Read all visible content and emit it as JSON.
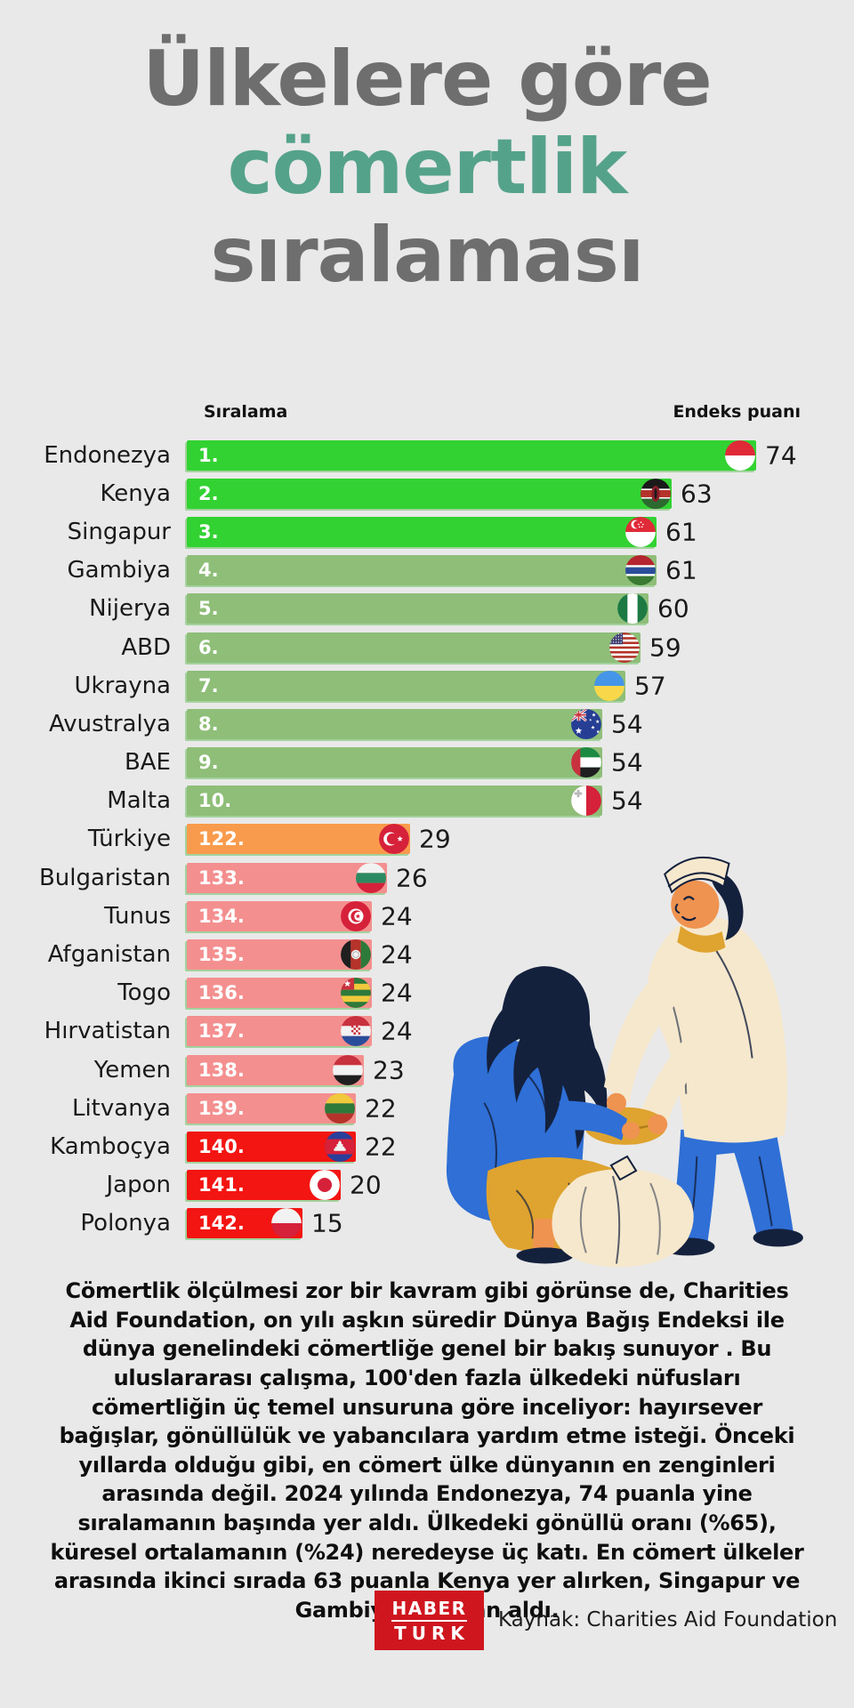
{
  "title": {
    "line1": "Ülkelere göre",
    "line2": "cömertlik",
    "line3": "sıralaması"
  },
  "colors": {
    "background": "#e9e9e9",
    "title_gray": "#6e6e6e",
    "accent_teal": "#55a28b",
    "bright_green": "#32d232",
    "sage_green": "#8ebe78",
    "orange": "#f99b4d",
    "salmon": "#f48f8f",
    "red": "#f31511",
    "logo_red": "#cf161f"
  },
  "chart_data": {
    "type": "bar",
    "title": "Ülkelere göre cömertlik sıralaması",
    "rank_header": "Sıralama",
    "score_header": "Endeks puanı",
    "xlim": [
      0,
      74
    ],
    "max_score": 74,
    "legend": "none",
    "categories": [
      "Endonezya",
      "Kenya",
      "Singapur",
      "Gambiya",
      "Nijerya",
      "ABD",
      "Ukrayna",
      "Avustralya",
      "BAE",
      "Malta",
      "Türkiye",
      "Bulgaristan",
      "Tunus",
      "Afganistan",
      "Togo",
      "Hırvatistan",
      "Yemen",
      "Litvanya",
      "Kamboçya",
      "Japon",
      "Polonya"
    ],
    "values": [
      74,
      63,
      61,
      61,
      60,
      59,
      57,
      54,
      54,
      54,
      29,
      26,
      24,
      24,
      24,
      24,
      23,
      22,
      22,
      20,
      15
    ],
    "rows": [
      {
        "country": "Endonezya",
        "rank": "1.",
        "score": 74,
        "color": "bright_green",
        "flag": "indonesia"
      },
      {
        "country": "Kenya",
        "rank": "2.",
        "score": 63,
        "color": "bright_green",
        "flag": "kenya"
      },
      {
        "country": "Singapur",
        "rank": "3.",
        "score": 61,
        "color": "bright_green",
        "flag": "singapore"
      },
      {
        "country": "Gambiya",
        "rank": "4.",
        "score": 61,
        "color": "sage_green",
        "flag": "gambia"
      },
      {
        "country": "Nijerya",
        "rank": "5.",
        "score": 60,
        "color": "sage_green",
        "flag": "nigeria"
      },
      {
        "country": "ABD",
        "rank": "6.",
        "score": 59,
        "color": "sage_green",
        "flag": "usa"
      },
      {
        "country": "Ukrayna",
        "rank": "7.",
        "score": 57,
        "color": "sage_green",
        "flag": "ukraine"
      },
      {
        "country": "Avustralya",
        "rank": "8.",
        "score": 54,
        "color": "sage_green",
        "flag": "australia"
      },
      {
        "country": "BAE",
        "rank": "9.",
        "score": 54,
        "color": "sage_green",
        "flag": "uae"
      },
      {
        "country": "Malta",
        "rank": "10.",
        "score": 54,
        "color": "sage_green",
        "flag": "malta"
      },
      {
        "country": "Türkiye",
        "rank": "122.",
        "score": 29,
        "color": "orange",
        "flag": "turkey"
      },
      {
        "country": "Bulgaristan",
        "rank": "133.",
        "score": 26,
        "color": "salmon",
        "flag": "bulgaria"
      },
      {
        "country": "Tunus",
        "rank": "134.",
        "score": 24,
        "color": "salmon",
        "flag": "tunisia"
      },
      {
        "country": "Afganistan",
        "rank": "135.",
        "score": 24,
        "color": "salmon",
        "flag": "afghanistan"
      },
      {
        "country": "Togo",
        "rank": "136.",
        "score": 24,
        "color": "salmon",
        "flag": "togo"
      },
      {
        "country": "Hırvatistan",
        "rank": "137.",
        "score": 24,
        "color": "salmon",
        "flag": "croatia"
      },
      {
        "country": "Yemen",
        "rank": "138.",
        "score": 23,
        "color": "salmon",
        "flag": "yemen"
      },
      {
        "country": "Litvanya",
        "rank": "139.",
        "score": 22,
        "color": "salmon",
        "flag": "lithuania"
      },
      {
        "country": "Kamboçya",
        "rank": "140.",
        "score": 22,
        "color": "red",
        "flag": "cambodia"
      },
      {
        "country": "Japon",
        "rank": "141.",
        "score": 20,
        "color": "red",
        "flag": "japan"
      },
      {
        "country": "Polonya",
        "rank": "142.",
        "score": 15,
        "color": "red",
        "flag": "poland"
      }
    ]
  },
  "body_text": "Cömertlik ölçülmesi zor bir kavram gibi görünse de, Charities Aid Foundation, on yılı aşkın süredir Dünya Bağış Endeksi ile dünya genelindeki cömertliğe genel bir bakış sunuyor . Bu uluslararası çalışma, 100'den fazla ülkedeki nüfusları cömertliğin üç temel unsuruna göre inceliyor: hayırsever bağışlar, gönüllülük ve yabancılara yardım etme isteği. Önceki yıllarda olduğu gibi, en cömert ülke dünyanın en zenginleri arasında değil. 2024 yılında Endonezya, 74 puanla yine sıralamanın başında yer aldı. Ülkedeki gönüllü oranı (%65), küresel ortalamanın (%24) neredeyse üç katı. En cömert ülkeler arasında ikinci sırada 63 puanla Kenya yer alırken, Singapur ve Gambiya 61 puan aldı.",
  "footer": {
    "logo_line1": "HABER",
    "logo_line2": "TURK",
    "source": "Kaynak: Charities Aid Foundation"
  }
}
